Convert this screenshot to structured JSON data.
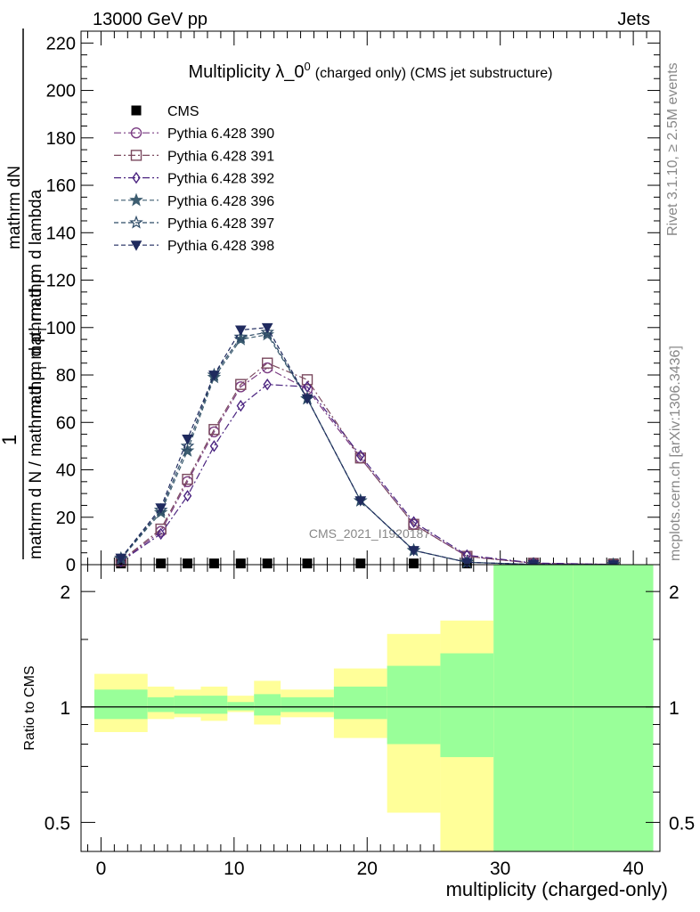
{
  "header": {
    "left": "13000 GeV pp",
    "right": "Jets"
  },
  "side_labels": {
    "rivet": "Rivet 3.1.10, ≥ 2.5M events",
    "mcplots": "mcplots.cern.ch [arXiv:1306.3436]"
  },
  "watermark": "CMS_2021_I1920187",
  "colors": {
    "band_yellow": "#ffff99",
    "band_green": "#99ff99",
    "p390": "#7a3b82",
    "p391": "#7b4a5f",
    "p392": "#4b2480",
    "p396": "#3d5d70",
    "p397": "#2c4a66",
    "p398": "#1f2a5e"
  },
  "chart_data": {
    "type": "line",
    "title_main": "Multiplicity λ_0",
    "title_sup": "0",
    "title_suffix": "(charged only) (CMS jet substructure)",
    "ylabel_top": "1",
    "ylabel_num": "mathrm dN",
    "ylabel_num2": "mathrm d p",
    "ylabel_num_sub": "T",
    "ylabel_num3": " mathrm d lambda",
    "ylabel_den": "mathrm d N / mathrm d p",
    "ylabel_den_sub": "T",
    "ylabel_den2": " mathrm d p",
    "xlabel": "multiplicity (charged-only)",
    "ratio_ylabel": "Ratio to CMS",
    "xlim": [
      -1.5,
      42
    ],
    "ylim": [
      0,
      225
    ],
    "ratio_ylim": [
      0.42,
      2.35
    ],
    "x_ticks": [
      "0",
      "10",
      "20",
      "30",
      "40"
    ],
    "y_ticks": [
      "0",
      "20",
      "40",
      "60",
      "80",
      "100",
      "120",
      "140",
      "160",
      "180",
      "200",
      "220"
    ],
    "ratio_ticks": [
      "0.5",
      "1",
      "2"
    ],
    "x": [
      1.5,
      4.5,
      6.5,
      8.5,
      10.5,
      12.5,
      15.5,
      19.5,
      23.5,
      27.5,
      32.5,
      38.5
    ],
    "series": [
      {
        "name": "CMS",
        "values": [
          0.5,
          0.5,
          0.5,
          0.5,
          0.5,
          0.5,
          0.5,
          0.5,
          0.5,
          0.5,
          0.5,
          0.5
        ]
      },
      {
        "name": "Pythia 6.428 390",
        "values": [
          1.5,
          14,
          35,
          56,
          75,
          83,
          74,
          45,
          17,
          3.5,
          0.6,
          0.1
        ]
      },
      {
        "name": "Pythia 6.428 391",
        "values": [
          1.6,
          15,
          36,
          57,
          76,
          85,
          78,
          45,
          17,
          3.5,
          0.6,
          0.1
        ]
      },
      {
        "name": "Pythia 6.428 392",
        "values": [
          1.3,
          13,
          29,
          50,
          67,
          76,
          75,
          46,
          18,
          4,
          0.7,
          0.1
        ]
      },
      {
        "name": "Pythia 6.428 396",
        "values": [
          2.5,
          22,
          48,
          79,
          95,
          97,
          70,
          27,
          6,
          1,
          0.1,
          0.01
        ]
      },
      {
        "name": "Pythia 6.428 397",
        "values": [
          2.6,
          23,
          50,
          80,
          96,
          98,
          70,
          27,
          6,
          1,
          0.1,
          0.01
        ]
      },
      {
        "name": "Pythia 6.428 398",
        "values": [
          2.8,
          24,
          53,
          80,
          99,
          100,
          70,
          27,
          6,
          1,
          0.1,
          0.01
        ]
      }
    ],
    "ratio_bands": {
      "edges": [
        -0.5,
        3.5,
        5.5,
        7.5,
        9.5,
        11.5,
        13.5,
        17.5,
        21.5,
        25.5,
        29.5,
        35.5,
        41.5
      ],
      "yellow_lo": [
        0.86,
        0.93,
        0.94,
        0.92,
        0.97,
        0.9,
        0.94,
        0.83,
        0.53,
        0.36,
        0.36,
        0.36
      ],
      "yellow_hi": [
        1.22,
        1.13,
        1.11,
        1.13,
        1.07,
        1.17,
        1.11,
        1.26,
        1.55,
        1.68,
        2.3,
        2.45
      ],
      "green_lo": [
        0.93,
        0.97,
        0.96,
        0.96,
        0.98,
        0.95,
        0.97,
        0.93,
        0.8,
        0.74,
        0.36,
        0.36
      ],
      "green_hi": [
        1.11,
        1.06,
        1.07,
        1.07,
        1.03,
        1.08,
        1.06,
        1.13,
        1.28,
        1.38,
        2.45,
        2.45
      ]
    }
  }
}
